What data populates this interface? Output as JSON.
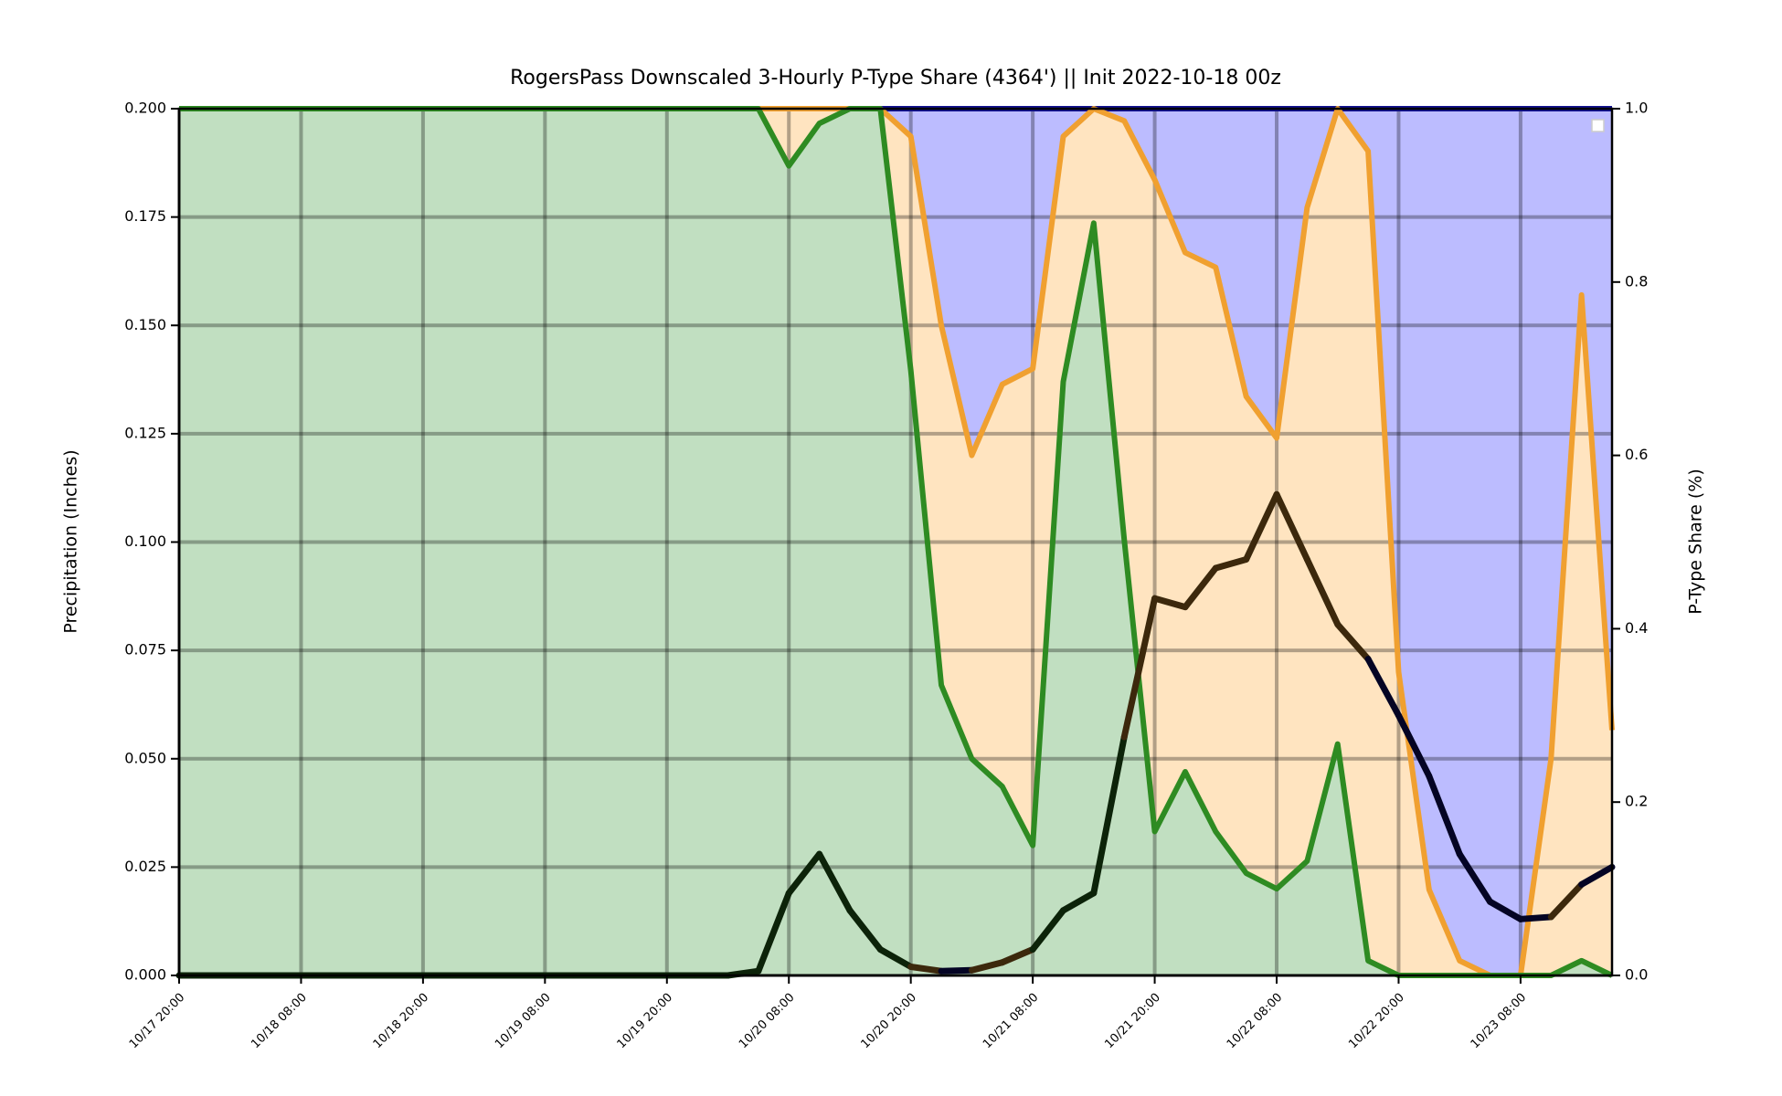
{
  "chart_data": {
    "type": "stacked-area-line",
    "title": "RogersPass Downscaled 3-Hourly P-Type Share (4364') || Init 2022-10-18 00z",
    "ylabel": "Precipitation (Inches)",
    "y2label": "P-Type Share (%)",
    "categories": [
      "10/17 20:00",
      null,
      null,
      null,
      "10/18 08:00",
      null,
      null,
      null,
      "10/18 20:00",
      null,
      null,
      null,
      "10/19 08:00",
      null,
      null,
      null,
      "10/19 20:00",
      null,
      null,
      null,
      "10/20 08:00",
      null,
      null,
      null,
      "10/20 20:00",
      null,
      null,
      null,
      "10/21 08:00",
      null,
      null,
      null,
      "10/21 20:00",
      null,
      null,
      null,
      "10/22 08:00",
      null,
      null,
      null,
      "10/22 20:00",
      null,
      null,
      null,
      "10/23 08:00",
      null,
      null,
      null
    ],
    "series": [
      {
        "axis": "y",
        "color": "#111111",
        "values": [
          0,
          0,
          0,
          0,
          0,
          0,
          0,
          0,
          0,
          0,
          0,
          0,
          0,
          0,
          0,
          0,
          0,
          0,
          0,
          0.001,
          0.019,
          0.028,
          0.015,
          0.006,
          0.002,
          0.001,
          0.0012,
          0.003,
          0.006,
          0.015,
          0.019,
          0.055,
          0.087,
          0.085,
          0.094,
          0.096,
          0.111,
          0.096,
          0.081,
          0.073,
          0.06,
          0.046,
          0.028,
          0.017,
          0.013,
          0.0135,
          0.021,
          0.025
        ]
      },
      {
        "axis": "y2",
        "color": "#2e8b22",
        "fill": "#c1dfc1",
        "values": [
          1,
          1,
          1,
          1,
          1,
          1,
          1,
          1,
          1,
          1,
          1,
          1,
          1,
          1,
          1,
          1,
          1,
          1,
          1,
          1,
          0.934,
          0.983,
          1,
          1,
          0.698,
          0.335,
          0.25,
          0.218,
          0.15,
          0.685,
          0.868,
          0.503,
          0.166,
          0.235,
          0.166,
          0.118,
          0.1,
          0.132,
          0.267,
          0.017,
          0,
          0,
          0,
          0,
          0,
          0,
          0.017,
          0
        ]
      },
      {
        "axis": "y2",
        "color": "#f0a030",
        "fill": "#ffe4c0",
        "values": [
          0,
          0,
          0,
          0,
          0,
          0,
          0,
          0,
          0,
          0,
          0,
          0,
          0,
          0,
          0,
          0,
          0,
          0,
          0,
          0,
          0.066,
          0.017,
          0,
          0,
          0.27,
          0.415,
          0.35,
          0.464,
          0.55,
          0.283,
          0.132,
          0.483,
          0.752,
          0.599,
          0.651,
          0.55,
          0.52,
          0.754,
          0.733,
          0.934,
          0.35,
          0.099,
          0.017,
          0,
          0,
          0.25,
          0.768,
          0.283
        ]
      },
      {
        "axis": "y2",
        "color": "#101090",
        "fill": "#bcbcff",
        "values": [
          0,
          0,
          0,
          0,
          0,
          0,
          0,
          0,
          0,
          0,
          0,
          0,
          0,
          0,
          0,
          0,
          0,
          0,
          0,
          0,
          0,
          0,
          0,
          0,
          0.032,
          0.25,
          0.4,
          0.318,
          0.3,
          0.032,
          0,
          0.014,
          0.082,
          0.166,
          0.183,
          0.332,
          0.38,
          0.114,
          0,
          0.049,
          0.65,
          0.901,
          0.983,
          1,
          1,
          0.75,
          0.215,
          0.717
        ]
      }
    ],
    "ylim": [
      0,
      0.2
    ],
    "yticks": [
      {
        "value": 0,
        "label": "0.000"
      },
      {
        "value": 0.025,
        "label": "0.025"
      },
      {
        "value": 0.05,
        "label": "0.050"
      },
      {
        "value": 0.075,
        "label": "0.075"
      },
      {
        "value": 0.1,
        "label": "0.100"
      },
      {
        "value": 0.125,
        "label": "0.125"
      },
      {
        "value": 0.15,
        "label": "0.150"
      },
      {
        "value": 0.175,
        "label": "0.175"
      },
      {
        "value": 0.2,
        "label": "0.200"
      }
    ],
    "y2lim": [
      0,
      1
    ],
    "y2ticks": [
      {
        "value": 0,
        "label": "0.0"
      },
      {
        "value": 0.2,
        "label": "0.2"
      },
      {
        "value": 0.4,
        "label": "0.4"
      },
      {
        "value": 0.6,
        "label": "0.6"
      },
      {
        "value": 0.8,
        "label": "0.8"
      },
      {
        "value": 1,
        "label": "1.0"
      }
    ],
    "grid": true,
    "legend": "upper right"
  }
}
